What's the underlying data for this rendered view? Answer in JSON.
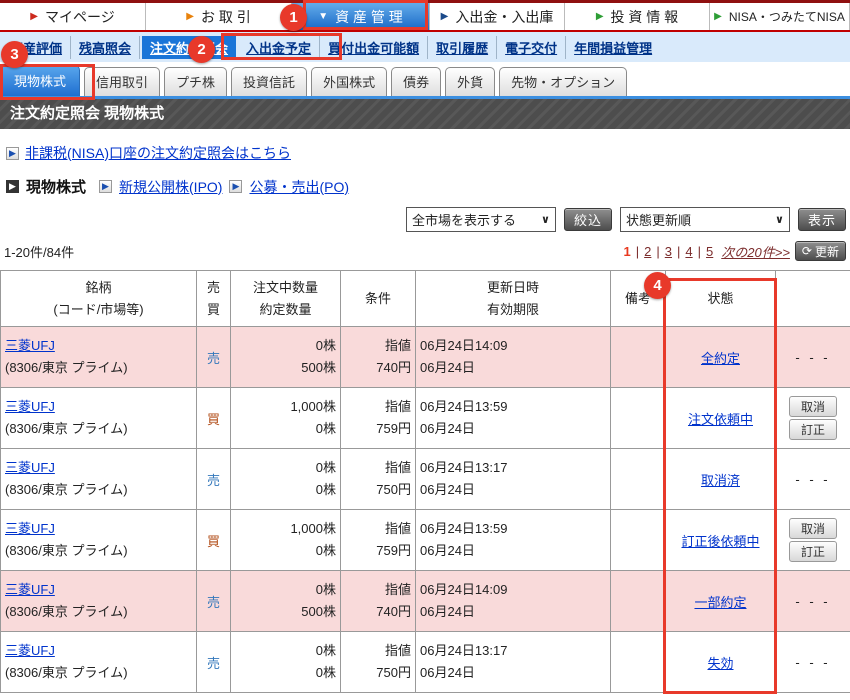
{
  "top_nav": {
    "items": [
      {
        "label": "マイページ",
        "arrow": "▶",
        "arrow_color": "#cc2a1e",
        "selected": false
      },
      {
        "label": "お 取 引",
        "arrow": "▶",
        "arrow_color": "#e8820c",
        "selected": false
      },
      {
        "label": "資 産 管 理",
        "arrow": "▼",
        "arrow_color": "#ffffff",
        "selected": true
      },
      {
        "label": "入出金・入出庫",
        "arrow": "▶",
        "arrow_color": "#1b4a8a",
        "selected": false
      },
      {
        "label": "投 資 情 報",
        "arrow": "▶",
        "arrow_color": "#2e9e36",
        "selected": false
      },
      {
        "label": "NISA・つみたてNISA",
        "arrow": "▶",
        "arrow_color": "#2e9e36",
        "selected": false
      }
    ]
  },
  "sub_nav": {
    "items": [
      "資産評価",
      "残高照会",
      "注文約定照会",
      "入出金予定",
      "買付出金可能額",
      "取引履歴",
      "電子交付",
      "年間損益管理"
    ],
    "selected_index": 2
  },
  "product_tabs": {
    "items": [
      "現物株式",
      "信用取引",
      "プチ株",
      "投資信託",
      "外国株式",
      "債券",
      "外貨",
      "先物・オプション"
    ],
    "selected_index": 0
  },
  "page_title": "注文約定照会 現物株式",
  "links": {
    "nisa": "非課税(NISA)口座の注文約定照会はこちら",
    "section_current": "現物株式",
    "ipo": "新規公開株(IPO)",
    "po": "公募・売出(PO)"
  },
  "filters": {
    "market_select": "全市場を表示する",
    "narrow_button": "絞込",
    "sort_select": "状態更新順",
    "show_button": "表示"
  },
  "pagination": {
    "count_text": "1-20件/84件",
    "current_page": "1",
    "pages": [
      "2",
      "3",
      "4",
      "5"
    ],
    "next_label": "次の20件>>",
    "refresh_label": "更新"
  },
  "table": {
    "headers": {
      "name_l1": "銘柄",
      "name_l2": "(コード/市場等)",
      "side_l1": "売",
      "side_l2": "買",
      "qty_l1": "注文中数量",
      "qty_l2": "約定数量",
      "cond": "条件",
      "date_l1": "更新日時",
      "date_l2": "有効期限",
      "remark": "備考",
      "status": "状態",
      "actions": ""
    },
    "action_labels": {
      "cancel": "取消",
      "amend": "訂正",
      "none": "- - -"
    },
    "rows": [
      {
        "name": "三菱UFJ",
        "code": "(8306/東京 プライム)",
        "side": "売",
        "qty_order": "0株",
        "qty_filled": "500株",
        "condition": "指値",
        "price": "740円",
        "updated": "06月24日14:09",
        "expiry": "06月24日",
        "remark": "",
        "status": "全約定",
        "has_buttons": false,
        "highlight": true
      },
      {
        "name": "三菱UFJ",
        "code": "(8306/東京 プライム)",
        "side": "買",
        "qty_order": "1,000株",
        "qty_filled": "0株",
        "condition": "指値",
        "price": "759円",
        "updated": "06月24日13:59",
        "expiry": "06月24日",
        "remark": "",
        "status": "注文依頼中",
        "has_buttons": true,
        "highlight": false
      },
      {
        "name": "三菱UFJ",
        "code": "(8306/東京 プライム)",
        "side": "売",
        "qty_order": "0株",
        "qty_filled": "0株",
        "condition": "指値",
        "price": "750円",
        "updated": "06月24日13:17",
        "expiry": "06月24日",
        "remark": "",
        "status": "取消済",
        "has_buttons": false,
        "highlight": false
      },
      {
        "name": "三菱UFJ",
        "code": "(8306/東京 プライム)",
        "side": "買",
        "qty_order": "1,000株",
        "qty_filled": "0株",
        "condition": "指値",
        "price": "759円",
        "updated": "06月24日13:59",
        "expiry": "06月24日",
        "remark": "",
        "status": "訂正後依頼中",
        "has_buttons": true,
        "highlight": false
      },
      {
        "name": "三菱UFJ",
        "code": "(8306/東京 プライム)",
        "side": "売",
        "qty_order": "0株",
        "qty_filled": "500株",
        "condition": "指値",
        "price": "740円",
        "updated": "06月24日14:09",
        "expiry": "06月24日",
        "remark": "",
        "status": "一部約定",
        "has_buttons": false,
        "highlight": true
      },
      {
        "name": "三菱UFJ",
        "code": "(8306/東京 プライム)",
        "side": "売",
        "qty_order": "0株",
        "qty_filled": "0株",
        "condition": "指値",
        "price": "750円",
        "updated": "06月24日13:17",
        "expiry": "06月24日",
        "remark": "",
        "status": "失効",
        "has_buttons": false,
        "highlight": false
      }
    ]
  },
  "annotations": {
    "badges": [
      "1",
      "2",
      "3",
      "4"
    ]
  }
}
